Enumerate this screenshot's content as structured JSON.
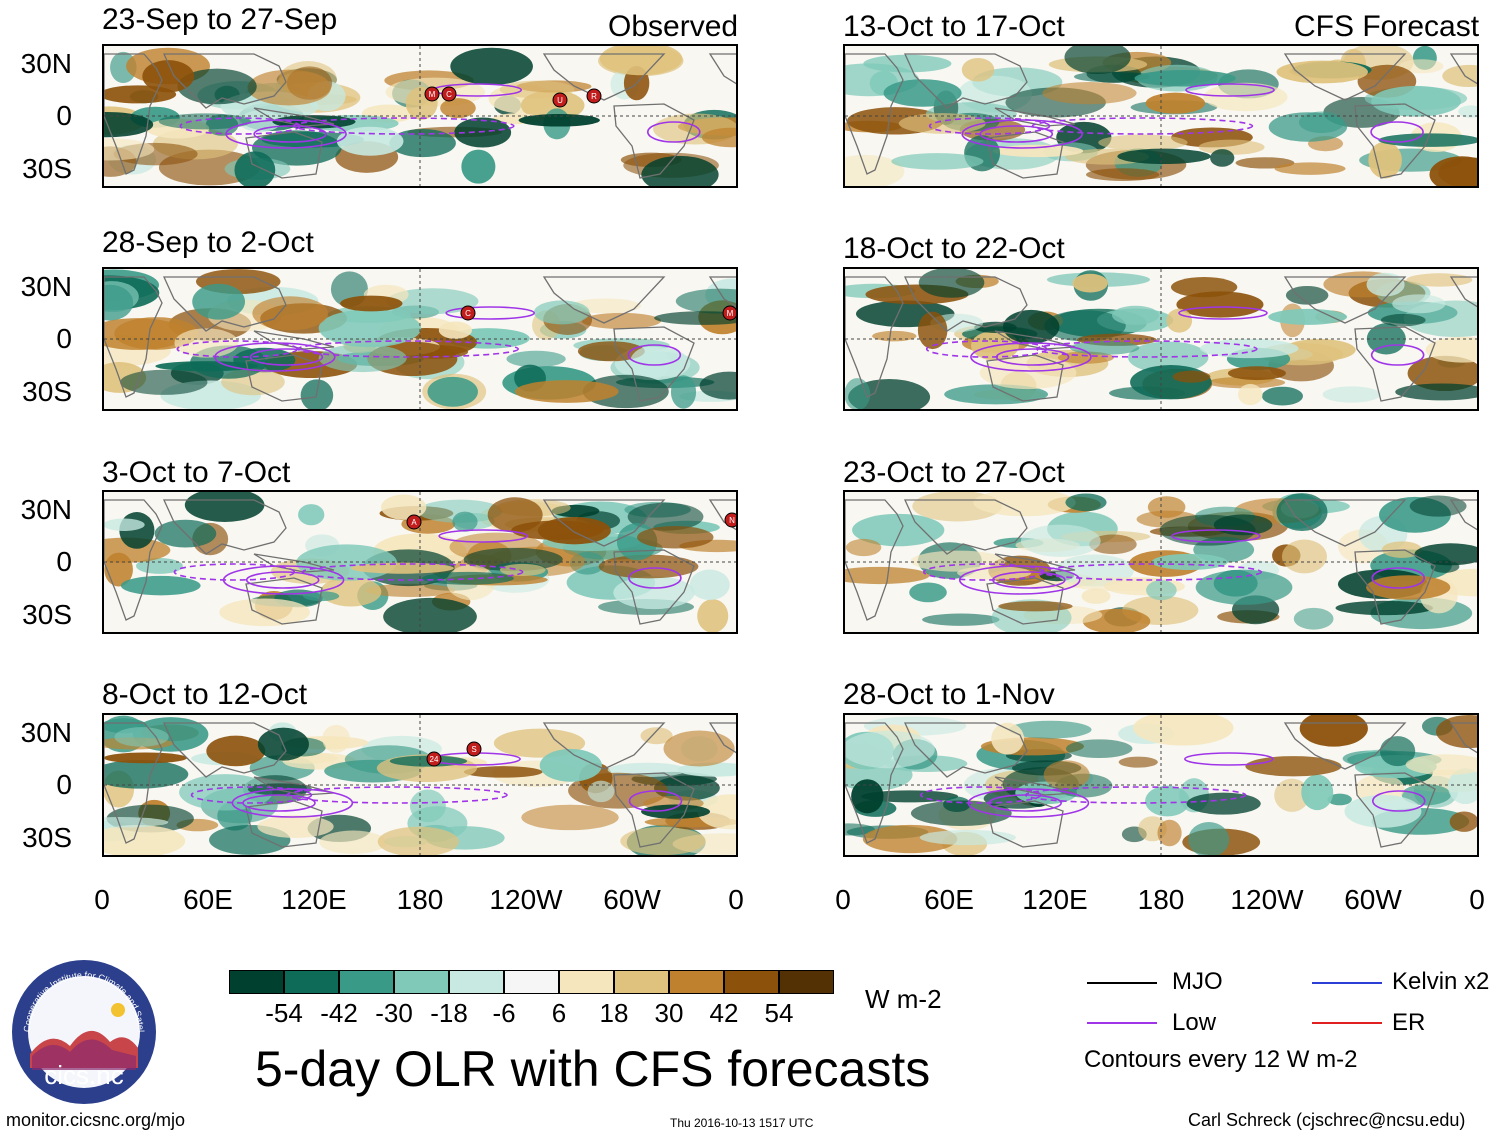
{
  "columns": {
    "left_tag": "Observed",
    "right_tag": "CFS Forecast"
  },
  "panels_left": [
    {
      "title": "23-Sep to 27-Sep",
      "storms": [
        "M",
        "C",
        "U",
        "R"
      ]
    },
    {
      "title": "28-Sep to 2-Oct",
      "storms": [
        "C",
        "M"
      ]
    },
    {
      "title": "3-Oct to 7-Oct",
      "storms": [
        "A",
        "N"
      ]
    },
    {
      "title": "8-Oct to 12-Oct",
      "storms": [
        "24",
        "S"
      ]
    }
  ],
  "panels_right": [
    {
      "title": "13-Oct to 17-Oct"
    },
    {
      "title": "18-Oct to 22-Oct"
    },
    {
      "title": "23-Oct to 27-Oct"
    },
    {
      "title": "28-Oct to 1-Nov"
    }
  ],
  "lat_labels": [
    "30N",
    "0",
    "30S"
  ],
  "lon_labels": [
    "0",
    "60E",
    "120E",
    "180",
    "120W",
    "60W",
    "0"
  ],
  "colorbar": {
    "colors": [
      "#00402e",
      "#0d6b58",
      "#3a9a88",
      "#80c9b9",
      "#c7e9e1",
      "#f6f6f6",
      "#f5e6bd",
      "#dfc27d",
      "#bf812d",
      "#8c510a",
      "#543005"
    ],
    "labels": [
      "-54",
      "-42",
      "-30",
      "-18",
      "-6",
      "6",
      "18",
      "30",
      "42",
      "54"
    ],
    "unit": "W m-2"
  },
  "legend": {
    "mjo": {
      "label": "MJO",
      "color": "#000000"
    },
    "kelvin": {
      "label": "Kelvin x2",
      "color": "#2b3fd6"
    },
    "low": {
      "label": "Low",
      "color": "#a035e8"
    },
    "er": {
      "label": "ER",
      "color": "#e02020"
    },
    "note": "Contours every 12 W m-2"
  },
  "main_title": "5-day OLR with CFS forecasts",
  "logo_text": "cics.nc",
  "logo_ring_text": "Cooperative Institute for Climate and Satellites",
  "footer": {
    "url": "monitor.cicsnc.org/mjo",
    "timestamp": "Thu 2016-10-13 1517 UTC",
    "author": "Carl Schreck (cjschrec@ncsu.edu)"
  }
}
